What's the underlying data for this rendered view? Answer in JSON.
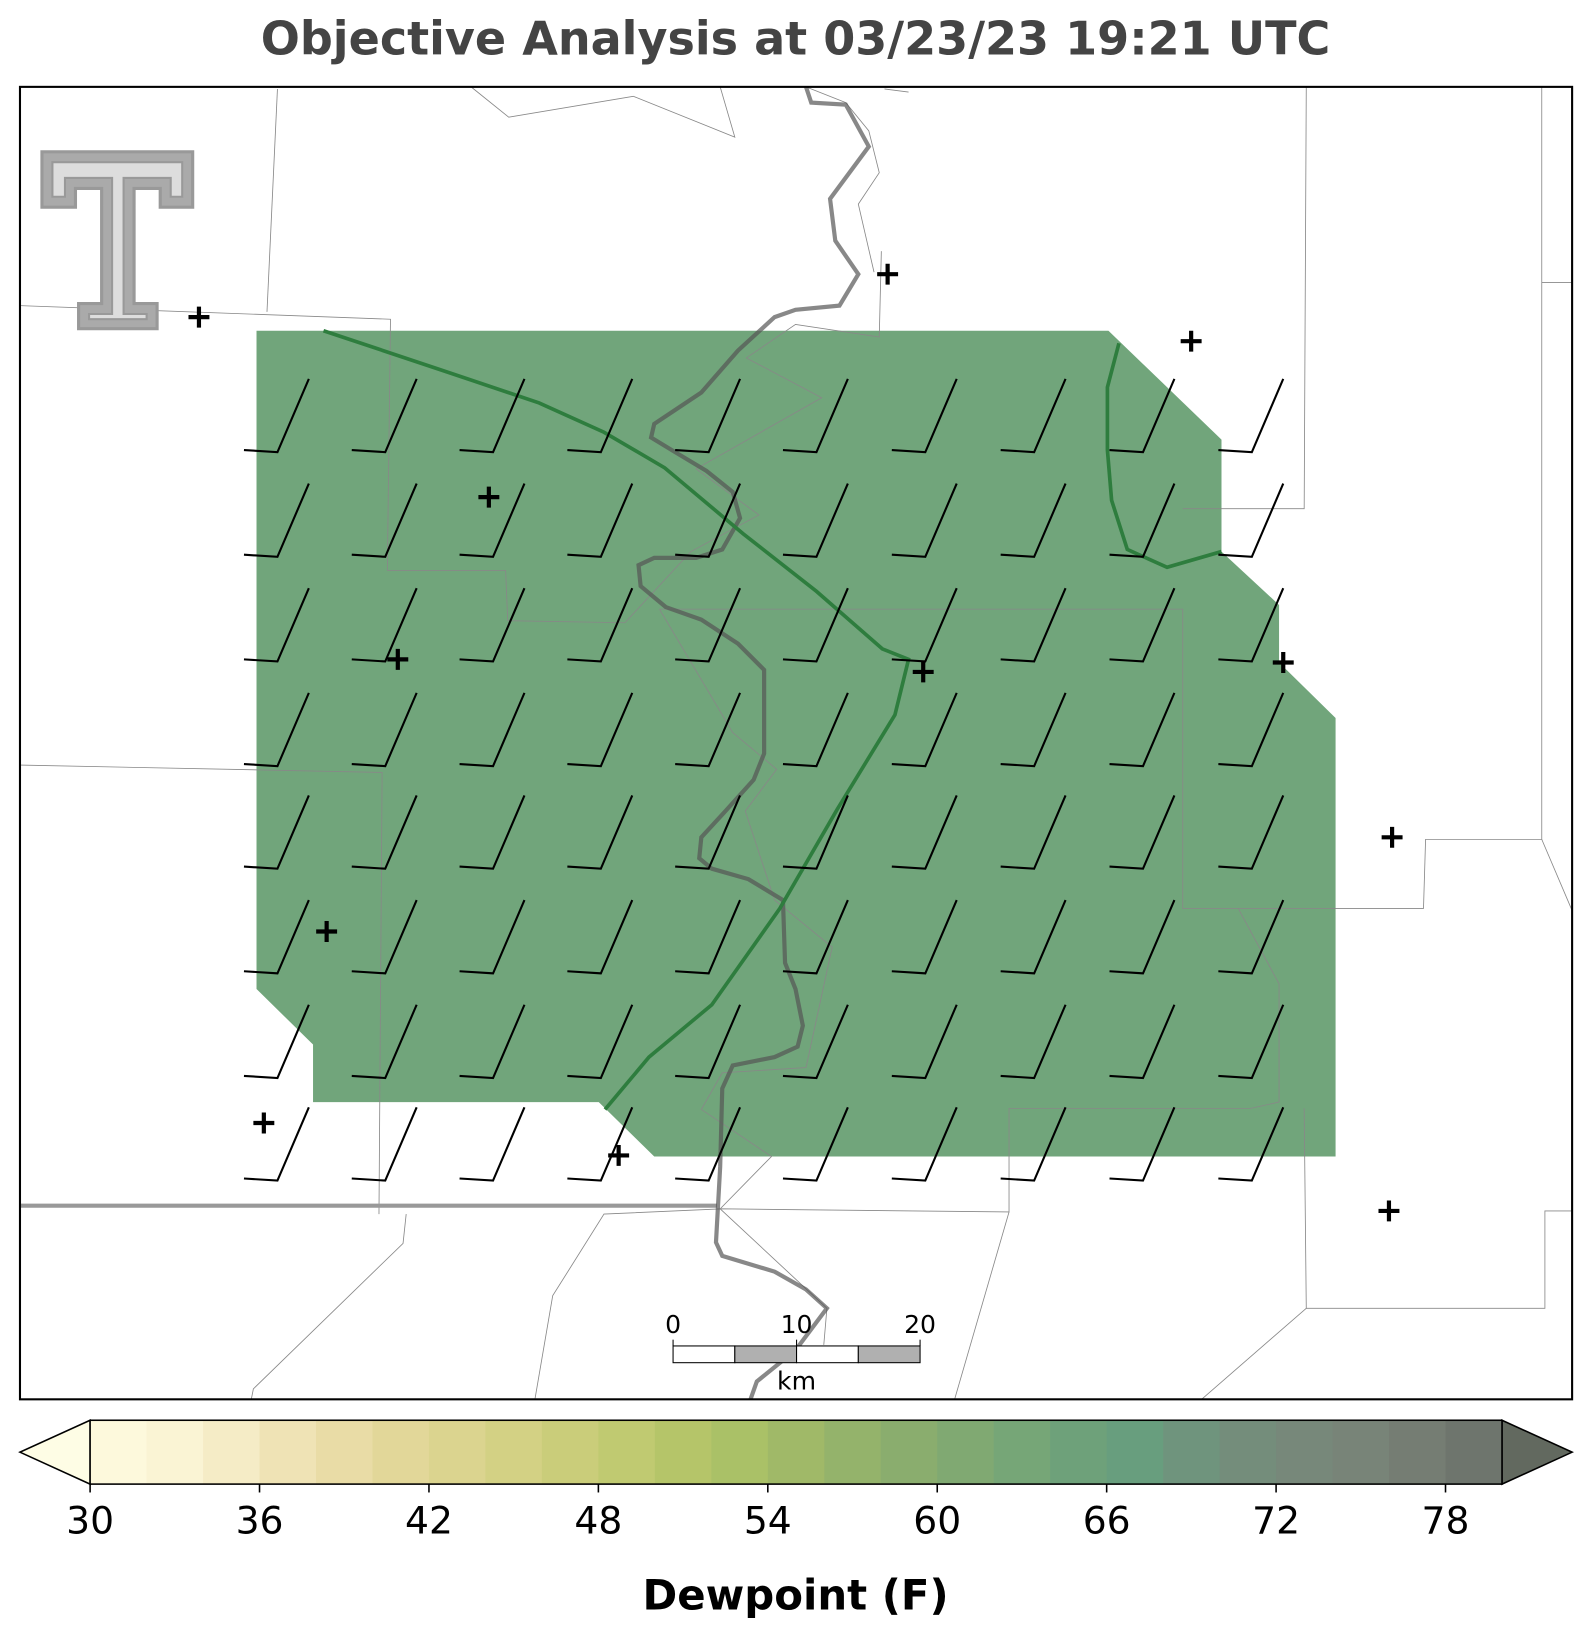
{
  "chart_data": {
    "type": "map",
    "title": "Objective Analysis at 03/23/23 19:21 UTC",
    "colorbar": {
      "label": "Dewpoint (F)",
      "lim": [
        30,
        80
      ],
      "ticks": [
        30,
        36,
        42,
        48,
        54,
        60,
        66,
        72,
        78
      ],
      "colors": [
        "#fdf9dc",
        "#faf4d4",
        "#f5ecc6",
        "#efe3b5",
        "#e9dca6",
        "#e2d799",
        "#dbd48f",
        "#d3d184",
        "#cacd7a",
        "#c0ca71",
        "#b5c569",
        "#aac167",
        "#a0b968",
        "#94b36b",
        "#8aad6e",
        "#80a972",
        "#76a677",
        "#6ea17a",
        "#689e7e",
        "#6f947d",
        "#748d7b",
        "#77887a",
        "#788478",
        "#757d73",
        "#6e756d"
      ],
      "extend_colors": [
        "#fefde5",
        "#62695f"
      ]
    },
    "scale_bar": {
      "ticks": [
        0,
        10,
        20
      ],
      "unit": "km"
    }
  }
}
